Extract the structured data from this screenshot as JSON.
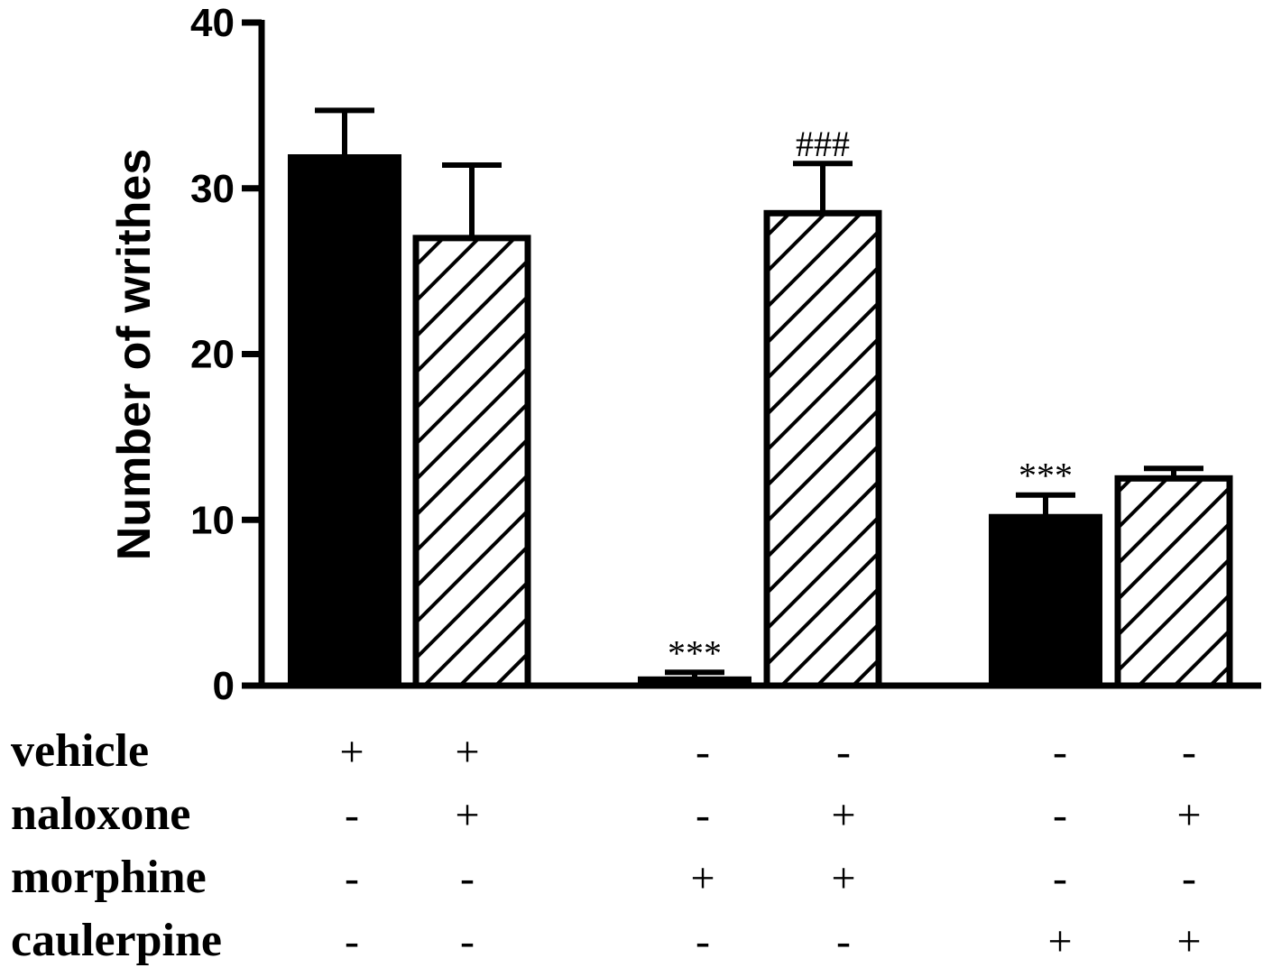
{
  "chart_data": {
    "type": "bar",
    "ylabel": "Number of writhes",
    "ylim": [
      0,
      40
    ],
    "yticks": [
      "0",
      "10",
      "20",
      "30",
      "40"
    ],
    "legend": "none",
    "grid": false,
    "bars": [
      {
        "value": 32.0,
        "error": 2.7,
        "fill": "solid",
        "annotation": ""
      },
      {
        "value": 27.0,
        "error": 4.4,
        "fill": "hatched",
        "annotation": ""
      },
      {
        "value": 0.5,
        "error": 0.3,
        "fill": "solid",
        "annotation": "***"
      },
      {
        "value": 28.5,
        "error": 3.0,
        "fill": "hatched",
        "annotation": "###"
      },
      {
        "value": 10.3,
        "error": 1.2,
        "fill": "solid",
        "annotation": "***"
      },
      {
        "value": 12.5,
        "error": 0.6,
        "fill": "hatched",
        "annotation": ""
      }
    ],
    "treatment_rows": [
      {
        "label": "vehicle",
        "signs": [
          "+",
          "+",
          "-",
          "-",
          "-",
          "-"
        ]
      },
      {
        "label": "naloxone",
        "signs": [
          "-",
          "+",
          "-",
          "+",
          "-",
          "+"
        ]
      },
      {
        "label": "morphine",
        "signs": [
          "-",
          "-",
          "+",
          "+",
          "-",
          "-"
        ]
      },
      {
        "label": "caulerpine",
        "signs": [
          "-",
          "-",
          "-",
          "-",
          "+",
          "+"
        ]
      }
    ]
  },
  "colors": {
    "bar_fill": "#000000",
    "hatch_stroke": "#000000",
    "axis": "#000000"
  }
}
